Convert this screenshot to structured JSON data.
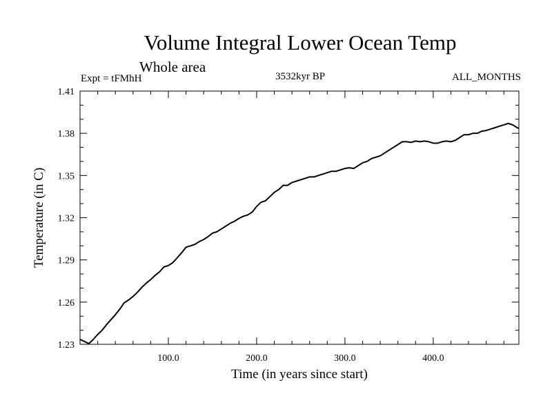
{
  "chart_data": {
    "type": "line",
    "title": "Volume Integral Lower Ocean Temp",
    "subtitle": "Whole area",
    "annotations": {
      "left": "Expt = tFMhH",
      "center": "3532kyr BP",
      "right": "ALL_MONTHS"
    },
    "xlabel": "Time (in years since start)",
    "ylabel": "Temperature (in C)",
    "xlim": [
      0,
      497
    ],
    "ylim": [
      1.23,
      1.41
    ],
    "xticks": [
      100,
      200,
      300,
      400
    ],
    "xtick_labels": [
      "100.0",
      "200.0",
      "300.0",
      "400.0"
    ],
    "yticks": [
      1.23,
      1.26,
      1.29,
      1.32,
      1.35,
      1.38,
      1.41
    ],
    "ytick_labels": [
      "1.23",
      "1.26",
      "1.29",
      "1.32",
      "1.35",
      "1.38",
      "1.41"
    ],
    "series": [
      {
        "name": "Temperature",
        "color": "#000000",
        "x": [
          0,
          5,
          10,
          15,
          20,
          25,
          30,
          35,
          40,
          45,
          50,
          55,
          60,
          65,
          70,
          75,
          80,
          85,
          90,
          95,
          100,
          105,
          110,
          115,
          120,
          125,
          130,
          135,
          140,
          145,
          150,
          155,
          160,
          165,
          170,
          175,
          180,
          185,
          190,
          195,
          200,
          205,
          210,
          215,
          220,
          225,
          230,
          235,
          240,
          245,
          250,
          255,
          260,
          265,
          270,
          275,
          280,
          285,
          290,
          295,
          300,
          305,
          310,
          315,
          320,
          325,
          330,
          335,
          340,
          345,
          350,
          355,
          360,
          365,
          370,
          375,
          380,
          385,
          390,
          395,
          400,
          405,
          410,
          415,
          420,
          425,
          430,
          435,
          440,
          445,
          450,
          455,
          460,
          465,
          470,
          475,
          480,
          485,
          490,
          495,
          497
        ],
        "y": [
          1.2335,
          1.232,
          1.2305,
          1.2335,
          1.237,
          1.24,
          1.244,
          1.2475,
          1.251,
          1.255,
          1.2595,
          1.2615,
          1.264,
          1.267,
          1.2705,
          1.2735,
          1.276,
          1.279,
          1.2815,
          1.285,
          1.286,
          1.288,
          1.2915,
          1.295,
          1.299,
          1.3,
          1.301,
          1.303,
          1.3045,
          1.3065,
          1.309,
          1.31,
          1.312,
          1.314,
          1.316,
          1.3175,
          1.3195,
          1.321,
          1.322,
          1.324,
          1.328,
          1.331,
          1.332,
          1.335,
          1.338,
          1.34,
          1.343,
          1.343,
          1.345,
          1.346,
          1.347,
          1.348,
          1.349,
          1.349,
          1.35,
          1.351,
          1.352,
          1.353,
          1.353,
          1.354,
          1.355,
          1.3555,
          1.355,
          1.357,
          1.359,
          1.36,
          1.362,
          1.363,
          1.364,
          1.366,
          1.368,
          1.37,
          1.372,
          1.374,
          1.374,
          1.3735,
          1.3745,
          1.374,
          1.3745,
          1.374,
          1.373,
          1.373,
          1.374,
          1.3745,
          1.374,
          1.375,
          1.377,
          1.379,
          1.379,
          1.38,
          1.38,
          1.3815,
          1.382,
          1.383,
          1.384,
          1.385,
          1.386,
          1.387,
          1.386,
          1.384,
          1.3835
        ]
      }
    ]
  }
}
